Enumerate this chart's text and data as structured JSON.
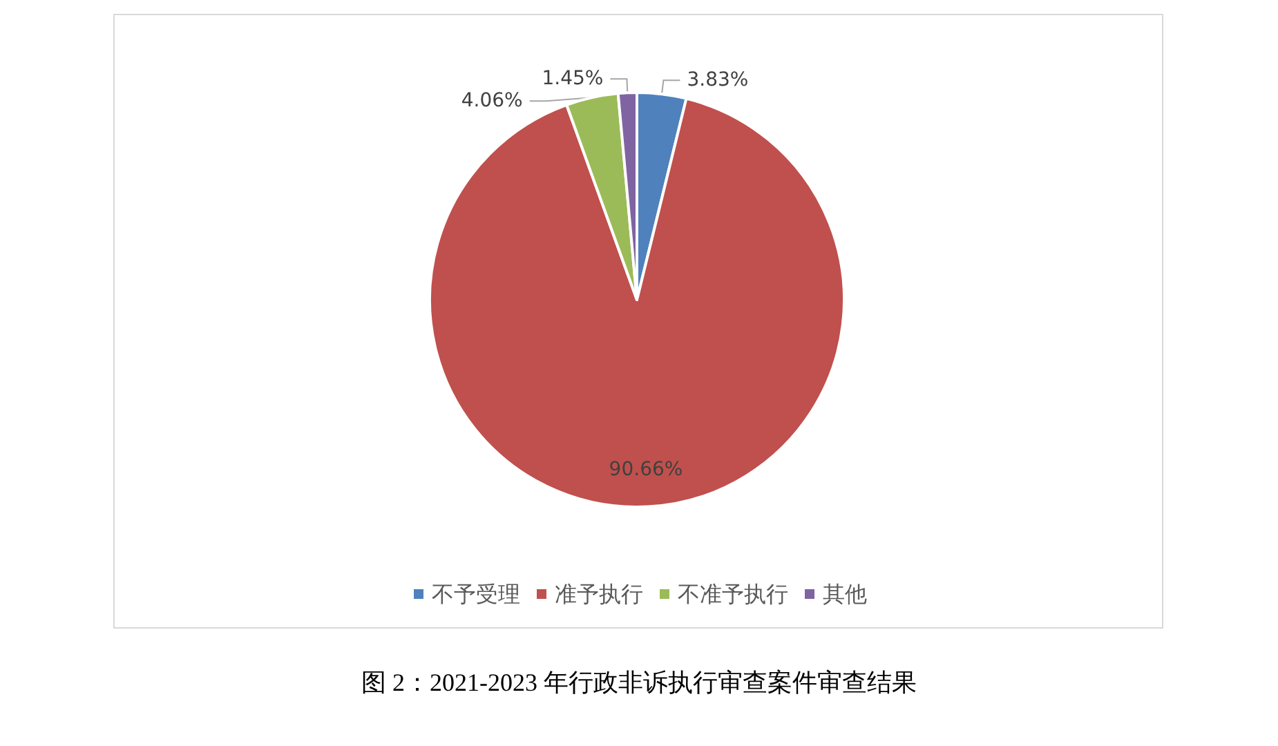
{
  "chart_data": {
    "type": "pie",
    "categories": [
      "不予受理",
      "准予执行",
      "不准予执行",
      "其他"
    ],
    "values": [
      3.83,
      90.66,
      4.06,
      1.45
    ],
    "colors": [
      "#4f81bd",
      "#c0504d",
      "#9bbb59",
      "#8064a2"
    ],
    "value_labels": [
      "3.83%",
      "90.66%",
      "4.06%",
      "1.45%"
    ],
    "legend": "bottom",
    "annotations": [
      "图 2：2021-2023 年行政非诉执行审查案件审查结果"
    ]
  }
}
